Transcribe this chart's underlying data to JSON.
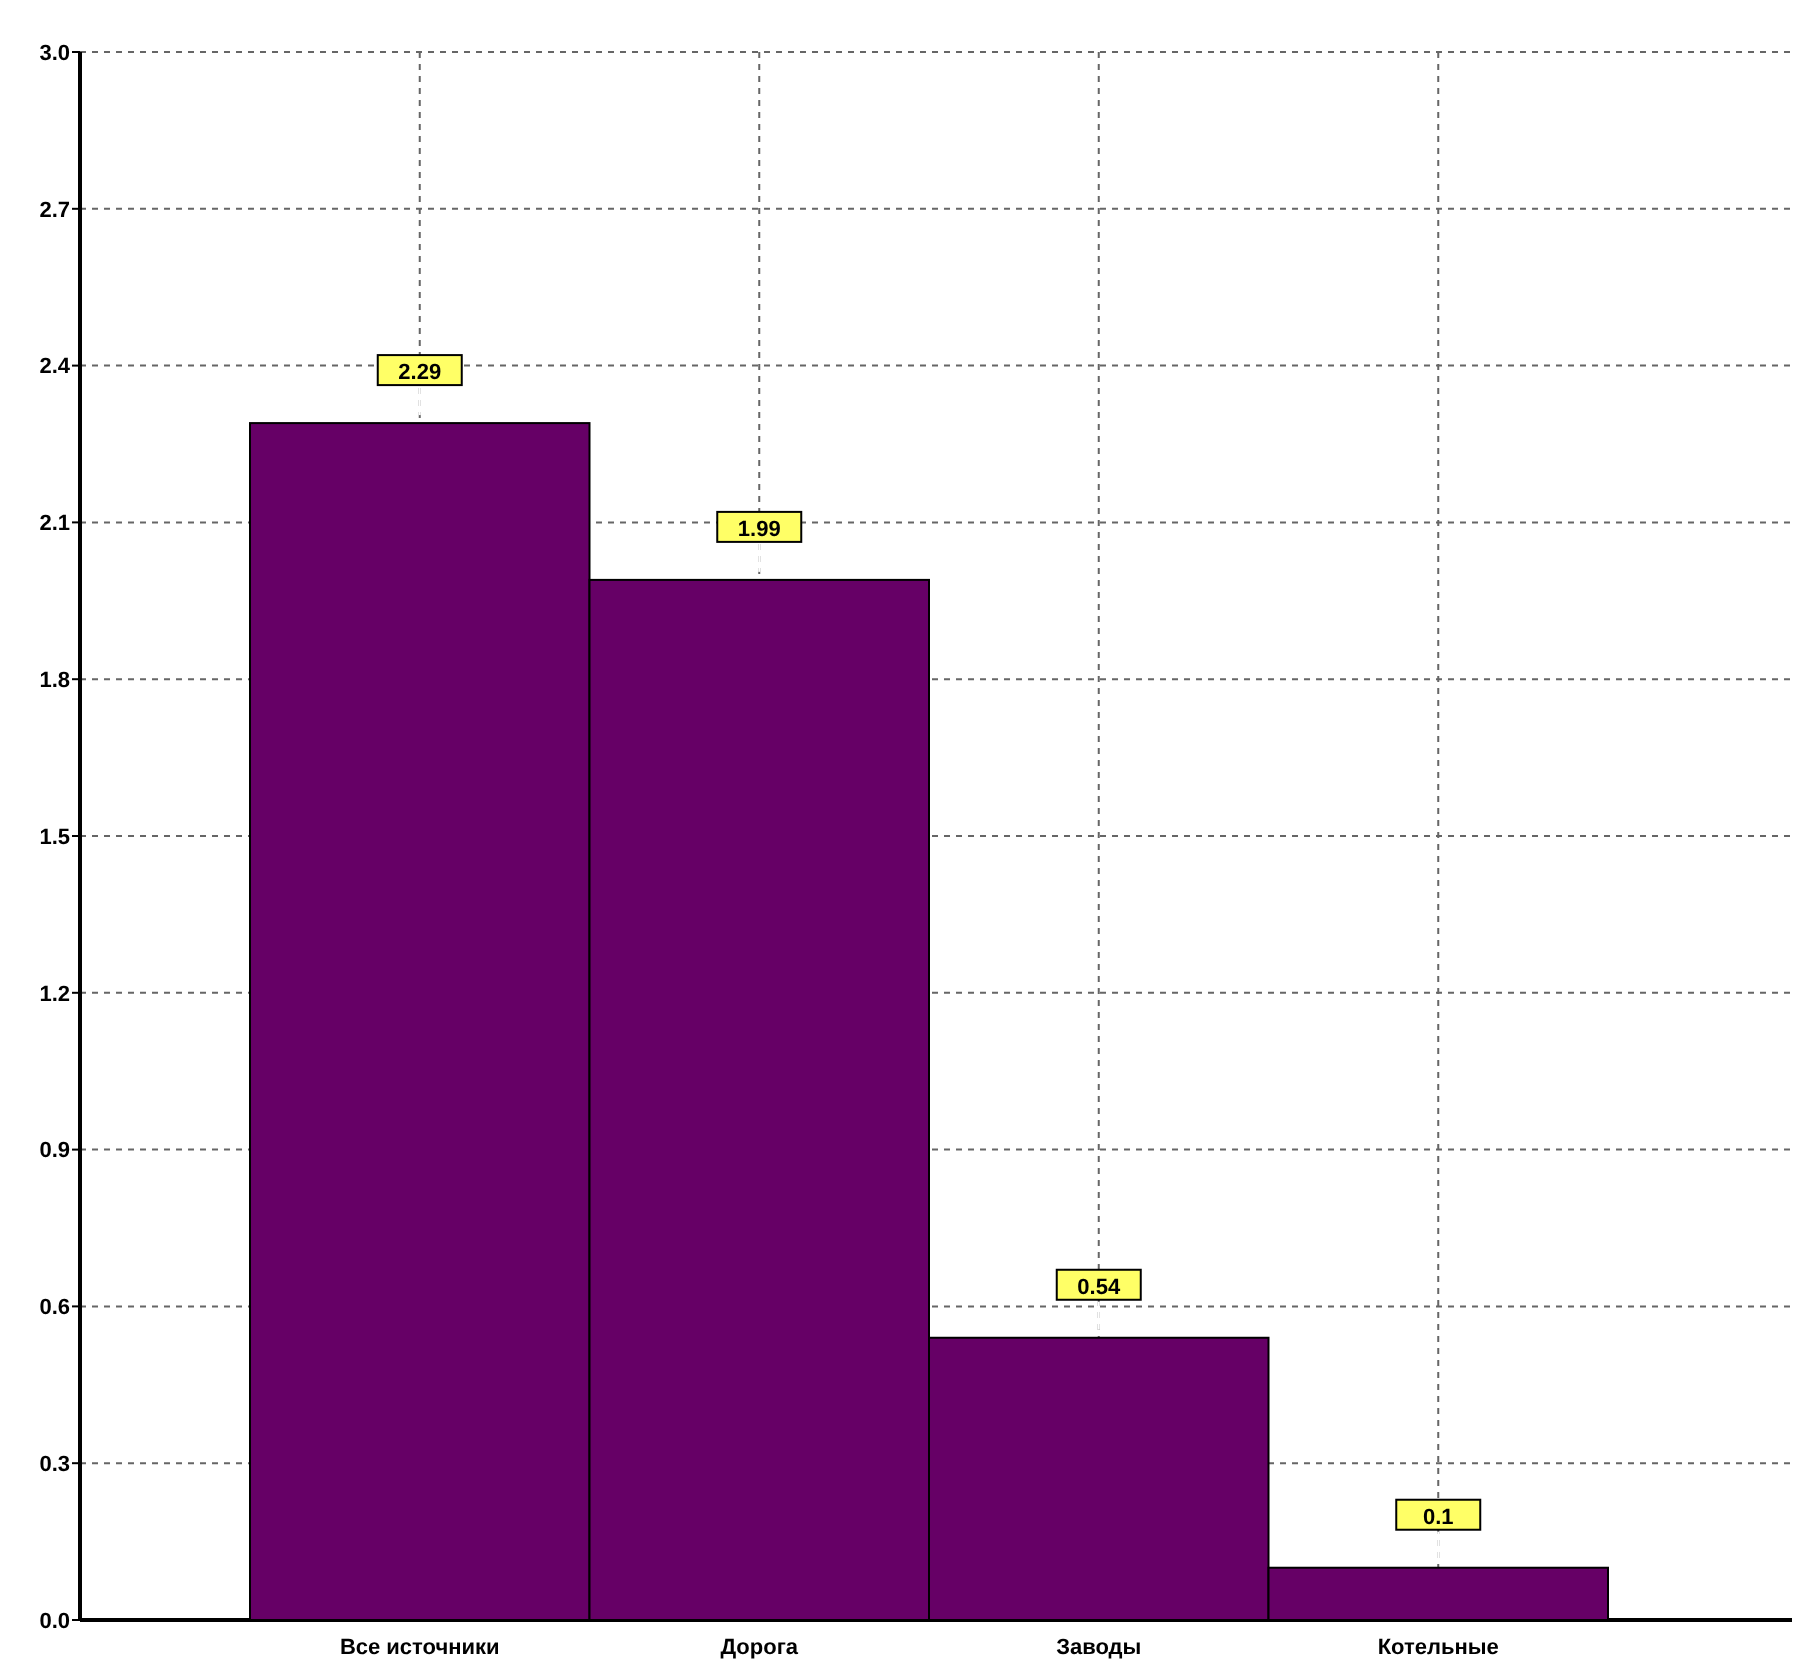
{
  "chart_data": {
    "type": "bar",
    "categories": [
      "Все источники",
      "Дорога",
      "Заводы",
      "Котельные"
    ],
    "values": [
      2.29,
      1.99,
      0.54,
      0.1
    ],
    "color": "#660066",
    "ylim": [
      0,
      3
    ],
    "yticks": [
      {
        "value": 0,
        "label": "0.0"
      },
      {
        "value": 0.3,
        "label": "0.3"
      },
      {
        "value": 0.6,
        "label": "0.6"
      },
      {
        "value": 0.9,
        "label": "0.9"
      },
      {
        "value": 1.2,
        "label": "1.2"
      },
      {
        "value": 1.5,
        "label": "1.5"
      },
      {
        "value": 1.8,
        "label": "1.8"
      },
      {
        "value": 2.1,
        "label": "2.1"
      },
      {
        "value": 2.4,
        "label": "2.4"
      },
      {
        "value": 2.7,
        "label": "2.7"
      },
      {
        "value": 3,
        "label": "3.0"
      }
    ],
    "grid": true,
    "data_labels": true
  }
}
